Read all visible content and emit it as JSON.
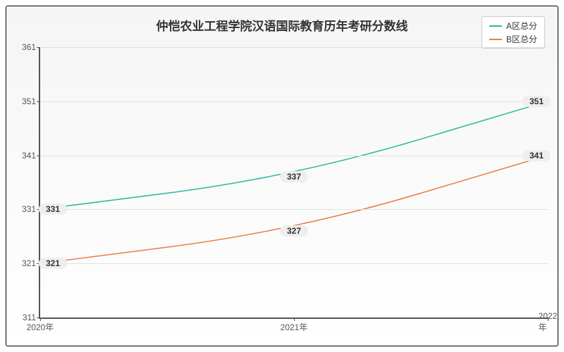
{
  "chart": {
    "type": "line",
    "title": "仲恺农业工程学院汉语国际教育历年考研分数线",
    "title_fontsize": 17,
    "background_gradient": [
      "#f5f5f5",
      "#ffffff"
    ],
    "grid_color": "#e0e0e0",
    "axis_color": "#555555",
    "text_color": "#333333",
    "tick_fontsize": 12,
    "datalabel_bg": "#eeeeee",
    "datalabel_fontsize": 12,
    "line_width": 1.5,
    "ylim": [
      311,
      361
    ],
    "ytick_step": 10,
    "yticks": [
      311,
      321,
      331,
      341,
      351,
      361
    ],
    "categories": [
      "2020年",
      "2021年",
      "2022年"
    ],
    "legend": {
      "position": "top-right",
      "border_color": "#cccccc",
      "bg": "#ffffff"
    },
    "series": [
      {
        "name": "A区总分",
        "color": "#2ab8a0",
        "values": [
          331,
          337,
          351
        ],
        "curve": true
      },
      {
        "name": "B区总分",
        "color": "#ec7c4a",
        "values": [
          321,
          327,
          341
        ],
        "curve": true
      }
    ]
  }
}
